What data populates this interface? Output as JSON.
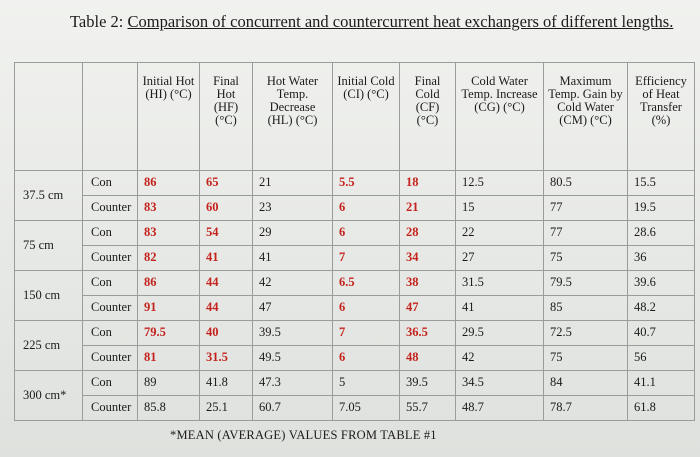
{
  "title": {
    "prefix": "Table 2: ",
    "text": "Comparison of concurrent and countercurrent heat exchangers of different lengths."
  },
  "headers": [
    "",
    "",
    "Initial Hot (HI) (°C)",
    "Final Hot (HF) (°C)",
    "Hot Water Temp. Decrease (HL) (°C)",
    "Initial Cold (CI) (°C)",
    "Final Cold (CF) (°C)",
    "Cold Water Temp. Increase (CG) (°C)",
    "Maximum Temp. Gain by Cold Water (CM) (°C)",
    "Efficiency of Heat Transfer (%)"
  ],
  "groups": [
    {
      "length": "37.5 cm",
      "rows": [
        {
          "type": "Con",
          "values": [
            "86",
            "65",
            "21",
            "5.5",
            "18",
            "12.5",
            "80.5",
            "15.5"
          ]
        },
        {
          "type": "Counter",
          "values": [
            "83",
            "60",
            "23",
            "6",
            "21",
            "15",
            "77",
            "19.5"
          ]
        }
      ]
    },
    {
      "length": "75 cm",
      "rows": [
        {
          "type": "Con",
          "values": [
            "83",
            "54",
            "29",
            "6",
            "28",
            "22",
            "77",
            "28.6"
          ]
        },
        {
          "type": "Counter",
          "values": [
            "82",
            "41",
            "41",
            "7",
            "34",
            "27",
            "75",
            "36"
          ]
        }
      ]
    },
    {
      "length": "150 cm",
      "rows": [
        {
          "type": "Con",
          "values": [
            "86",
            "44",
            "42",
            "6.5",
            "38",
            "31.5",
            "79.5",
            "39.6"
          ]
        },
        {
          "type": "Counter",
          "values": [
            "91",
            "44",
            "47",
            "6",
            "47",
            "41",
            "85",
            "48.2"
          ]
        }
      ]
    },
    {
      "length": "225 cm",
      "rows": [
        {
          "type": "Con",
          "values": [
            "79.5",
            "40",
            "39.5",
            "7",
            "36.5",
            "29.5",
            "72.5",
            "40.7"
          ]
        },
        {
          "type": "Counter",
          "values": [
            "81",
            "31.5",
            "49.5",
            "6",
            "48",
            "42",
            "75",
            "56"
          ]
        }
      ]
    },
    {
      "length": "300 cm*",
      "rows": [
        {
          "type": "Con",
          "values": [
            "89",
            "41.8",
            "47.3",
            "5",
            "39.5",
            "34.5",
            "84",
            "41.1"
          ]
        },
        {
          "type": "Counter",
          "values": [
            "85.8",
            "25.1",
            "60.7",
            "7.05",
            "55.7",
            "48.7",
            "78.7",
            "61.8"
          ]
        }
      ]
    }
  ],
  "footnote": "*MEAN (AVERAGE) VALUES FROM TABLE #1",
  "colors": {
    "highlight": "#c4221c",
    "text": "#1b1b1b"
  }
}
